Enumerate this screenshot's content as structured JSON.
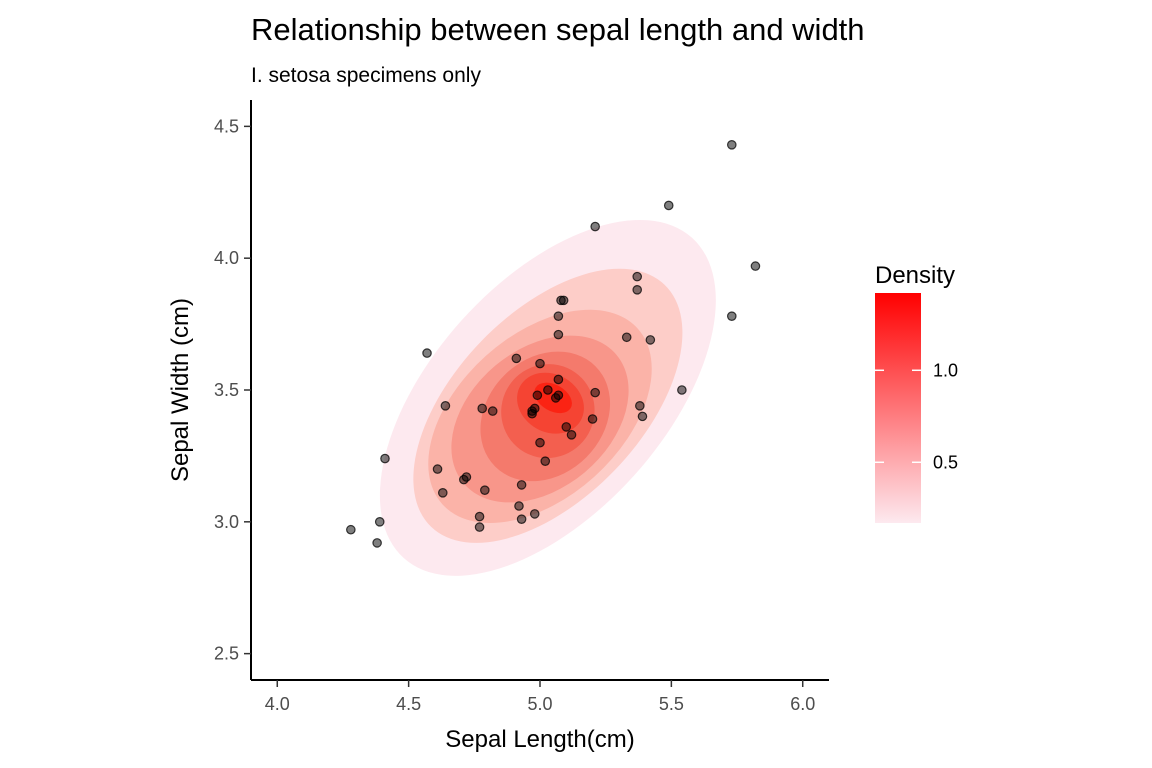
{
  "chart_data": {
    "type": "scatter",
    "title": "Relationship between sepal length and width",
    "subtitle": "I. setosa specimens only",
    "xlabel": "Sepal Length(cm)",
    "ylabel": "Sepal Width (cm)",
    "xlim": [
      3.9,
      6.1
    ],
    "ylim": [
      2.4,
      4.6
    ],
    "x_ticks": [
      4.0,
      4.5,
      5.0,
      5.5,
      6.0
    ],
    "x_tick_labels": [
      "4.0",
      "4.5",
      "5.0",
      "5.5",
      "6.0"
    ],
    "y_ticks": [
      2.5,
      3.0,
      3.5,
      4.0,
      4.5
    ],
    "y_tick_labels": [
      "2.5",
      "3.0",
      "3.5",
      "4.0",
      "4.5"
    ],
    "grid": false,
    "legend": {
      "title": "Density",
      "position": "right",
      "min": 0.17,
      "max": 1.42,
      "breaks": [
        0.5,
        1.0
      ],
      "break_labels": [
        "0.5",
        "1.0"
      ],
      "color_low": "#fde9ef",
      "color_high": "#ff0000"
    },
    "density_levels": [
      {
        "level": 0.2,
        "color": "#fde9ef",
        "cx": 5.03,
        "cy": 3.47,
        "rx": 0.82,
        "ry": 0.2,
        "angle": 48
      },
      {
        "level": 0.4,
        "color": "#fdcdc8",
        "cx": 5.03,
        "cy": 3.44,
        "rx": 0.64,
        "ry": 0.16,
        "angle": 46
      },
      {
        "level": 0.55,
        "color": "#fbb3a8",
        "cx": 5.0,
        "cy": 3.4,
        "rx": 0.5,
        "ry": 0.14,
        "angle": 42
      },
      {
        "level": 0.7,
        "color": "#f8968a",
        "cx": 5.0,
        "cy": 3.39,
        "rx": 0.38,
        "ry": 0.12,
        "angle": 40
      },
      {
        "level": 0.85,
        "color": "#f47a6c",
        "cx": 5.02,
        "cy": 3.4,
        "rx": 0.27,
        "ry": 0.1,
        "angle": 45
      },
      {
        "level": 1.0,
        "color": "#f35f4f",
        "cx": 5.03,
        "cy": 3.42,
        "rx": 0.18,
        "ry": 0.08,
        "angle": 55
      },
      {
        "level": 1.15,
        "color": "#f54433",
        "cx": 5.04,
        "cy": 3.45,
        "rx": 0.11,
        "ry": 0.06,
        "angle": 60
      },
      {
        "level": 1.3,
        "color": "#fb2313",
        "cx": 5.05,
        "cy": 3.47,
        "rx": 0.05,
        "ry": 0.035,
        "angle": 60
      }
    ],
    "point_color": "#000000",
    "point_alpha": 0.5,
    "x": [
      5.73,
      5.49,
      5.21,
      5.82,
      5.73,
      5.37,
      5.37,
      5.09,
      5.08,
      5.07,
      5.07,
      5.33,
      5.42,
      4.57,
      4.91,
      5.0,
      5.07,
      5.07,
      5.03,
      4.99,
      5.06,
      4.98,
      5.21,
      5.54,
      4.64,
      4.78,
      4.82,
      4.97,
      4.97,
      5.2,
      5.38,
      5.39,
      5.1,
      5.12,
      5.0,
      4.41,
      5.02,
      4.61,
      4.72,
      4.71,
      4.63,
      4.79,
      4.93,
      4.92,
      4.93,
      4.98,
      4.77,
      4.77,
      4.39,
      4.28,
      4.38
    ],
    "y": [
      4.43,
      4.2,
      4.12,
      3.97,
      3.78,
      3.93,
      3.88,
      3.84,
      3.84,
      3.78,
      3.71,
      3.7,
      3.69,
      3.64,
      3.62,
      3.6,
      3.54,
      3.48,
      3.5,
      3.48,
      3.47,
      3.43,
      3.49,
      3.5,
      3.44,
      3.43,
      3.42,
      3.42,
      3.41,
      3.39,
      3.44,
      3.4,
      3.36,
      3.33,
      3.3,
      3.24,
      3.23,
      3.2,
      3.17,
      3.16,
      3.11,
      3.12,
      3.14,
      3.06,
      3.01,
      3.03,
      3.02,
      2.98,
      3.0,
      2.97,
      2.92
    ]
  }
}
